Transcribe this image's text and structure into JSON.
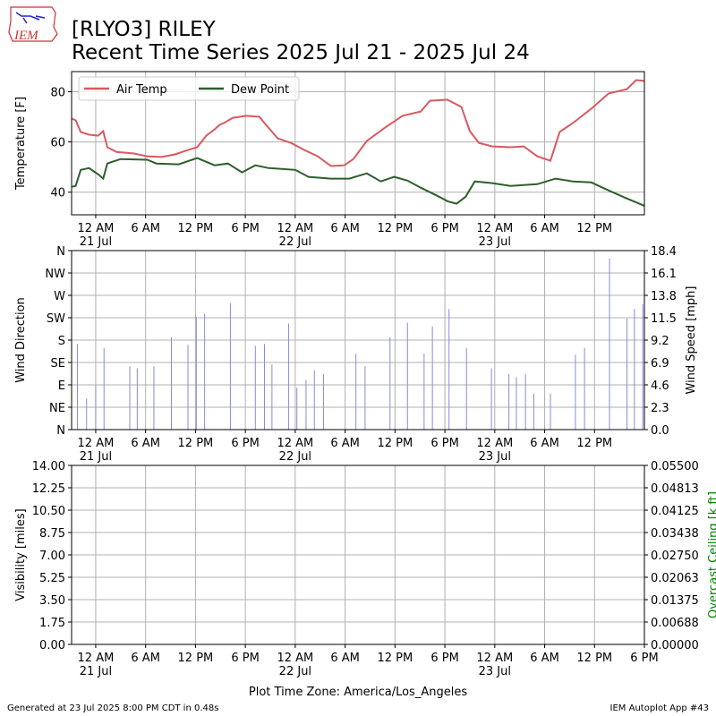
{
  "title": "[RLYO3] RILEY",
  "subtitle": "Recent Time Series 2025 Jul 21 - 2025 Jul 24",
  "logo": "IEM",
  "footer_left": "Generated at 23 Jul 2025 8:00 PM CDT in 0.48s",
  "footer_right": "IEM Autoplot App #43",
  "chart_data": [
    {
      "type": "line",
      "ylabel": "Temperature [F]",
      "grid": true,
      "legend": "upper left",
      "xlim": [
        -2.9,
        66
      ],
      "ylim": [
        31,
        88
      ],
      "yticks": [
        40,
        60,
        80
      ],
      "xticks": [
        {
          "value": 0,
          "label": "12 AM\n21 Jul"
        },
        {
          "value": 6,
          "label": "6 AM"
        },
        {
          "value": 12,
          "label": "12 PM"
        },
        {
          "value": 18,
          "label": "6 PM"
        },
        {
          "value": 24,
          "label": "12 AM\n22 Jul"
        },
        {
          "value": 30,
          "label": "6 AM"
        },
        {
          "value": 36,
          "label": "12 PM"
        },
        {
          "value": 42,
          "label": "6 PM"
        },
        {
          "value": 48,
          "label": "12 AM\n23 Jul"
        },
        {
          "value": 54,
          "label": "6 AM"
        },
        {
          "value": 60,
          "label": "12 PM"
        }
      ],
      "series": [
        {
          "name": "Air Temp",
          "color": "#d9595f",
          "x": [
            -2.9,
            -2.4,
            -1.8,
            -0.8,
            0.3,
            0.9,
            1.4,
            2.5,
            4.6,
            6.2,
            7.9,
            9.5,
            11.1,
            12.2,
            13.3,
            14.3,
            14.9,
            15.4,
            16.5,
            18.1,
            19.7,
            20.3,
            21.9,
            23.5,
            25.1,
            26.7,
            28.3,
            29.9,
            31.0,
            32.6,
            34.8,
            36.9,
            39.1,
            40.2,
            42.3,
            44.0,
            45.0,
            46.1,
            47.7,
            49.9,
            51.5,
            53.1,
            54.7,
            55.8,
            57.4,
            59.6,
            61.7,
            63.9,
            65.0,
            66.0
          ],
          "values": [
            69.3,
            68.6,
            64,
            62.9,
            62.5,
            64.3,
            57.9,
            56,
            55.4,
            54.3,
            54,
            55,
            56.8,
            57.9,
            62.5,
            65,
            66.8,
            67.5,
            69.6,
            70.4,
            70,
            67.5,
            61.4,
            59.6,
            56.8,
            54.3,
            50.4,
            50.7,
            53.2,
            60.4,
            65.7,
            70.4,
            72.1,
            76.4,
            76.8,
            73.9,
            64.3,
            59.6,
            58.2,
            57.9,
            58.2,
            54.3,
            52.5,
            64,
            67.5,
            73.2,
            79.3,
            81,
            84.6,
            84.3
          ]
        },
        {
          "name": "Dew Point",
          "color": "#2e5e2e",
          "x": [
            -2.9,
            -2.4,
            -1.8,
            -0.8,
            0.3,
            0.9,
            1.4,
            3.0,
            6.2,
            7.3,
            10.0,
            12.2,
            14.3,
            15.9,
            17.6,
            19.2,
            20.8,
            24.0,
            25.6,
            28.3,
            30.5,
            32.6,
            34.3,
            35.9,
            37.5,
            39.1,
            41.3,
            42.3,
            43.4,
            44.5,
            45.6,
            47.7,
            49.9,
            53.1,
            55.3,
            57.4,
            59.6,
            61.7,
            63.9,
            66.0
          ],
          "values": [
            42.1,
            42.5,
            48.9,
            49.6,
            47.1,
            45.4,
            51.4,
            53.2,
            52.9,
            51.4,
            51.1,
            53.6,
            50.7,
            51.4,
            47.9,
            50.7,
            49.6,
            48.9,
            46.1,
            45.4,
            45.4,
            47.5,
            44.3,
            46.1,
            44.6,
            41.8,
            38.2,
            36.4,
            35.4,
            38.2,
            44.3,
            43.6,
            42.5,
            43.2,
            45.4,
            44.3,
            43.9,
            40.7,
            37.5,
            34.6
          ]
        }
      ]
    },
    {
      "type": "bar",
      "ylabel": "Wind Direction",
      "y2label": "Wind Speed [mph]",
      "grid": true,
      "xlim": [
        -2.9,
        66
      ],
      "ylim": [
        0,
        360
      ],
      "yticks": [
        {
          "value": 0,
          "label": "N"
        },
        {
          "value": 45,
          "label": "NE"
        },
        {
          "value": 90,
          "label": "E"
        },
        {
          "value": 135,
          "label": "SE"
        },
        {
          "value": 180,
          "label": "S"
        },
        {
          "value": 225,
          "label": "SW"
        },
        {
          "value": 270,
          "label": "W"
        },
        {
          "value": 315,
          "label": "NW"
        },
        {
          "value": 360,
          "label": "N"
        }
      ],
      "y2lim": [
        0,
        18.4
      ],
      "y2ticks": [
        {
          "value": 0,
          "label": "0.0"
        },
        2.3,
        4.6,
        6.9,
        9.2,
        11.5,
        13.8,
        16.1,
        18.4
      ],
      "xticks": [
        {
          "value": 0,
          "label": "12 AM\n21 Jul"
        },
        {
          "value": 6,
          "label": "6 AM"
        },
        {
          "value": 12,
          "label": "12 PM"
        },
        {
          "value": 18,
          "label": "6 PM"
        },
        {
          "value": 24,
          "label": "12 AM\n22 Jul"
        },
        {
          "value": 30,
          "label": "6 AM"
        },
        {
          "value": 36,
          "label": "12 PM"
        },
        {
          "value": 42,
          "label": "6 PM"
        },
        {
          "value": 48,
          "label": "12 AM\n23 Jul"
        },
        {
          "value": 54,
          "label": "6 AM"
        },
        {
          "value": 60,
          "label": "12 PM"
        }
      ],
      "series": [
        {
          "axis": "y2",
          "color": "#8a8ae0",
          "x": [
            -2.2,
            -1.1,
            0,
            1.0,
            4.1,
            5.0,
            7.0,
            9.1,
            11.1,
            12.1,
            13.1,
            16.2,
            19.2,
            20.3,
            21.2,
            23.2,
            24.2,
            25.3,
            26.3,
            27.4,
            31.3,
            32.4,
            35.4,
            37.5,
            39.5,
            40.5,
            42.5,
            44.6,
            47.6,
            49.7,
            50.6,
            51.7,
            52.7,
            54.7,
            57.7,
            58.8,
            61.8,
            63.9,
            64.8,
            65.8
          ],
          "values": [
            8.8,
            3.2,
            4.6,
            8.4,
            6.5,
            6.3,
            6.5,
            9.5,
            8.7,
            11.6,
            11.9,
            13.0,
            8.6,
            8.8,
            6.7,
            10.9,
            4.3,
            5.1,
            6.1,
            5.7,
            7.8,
            6.5,
            9.5,
            11.0,
            7.8,
            10.6,
            12.4,
            8.4,
            6.3,
            5.7,
            5.4,
            5.7,
            3.7,
            3.7,
            7.7,
            8.4,
            17.6,
            11.4,
            12.4,
            12.9
          ]
        }
      ]
    },
    {
      "type": "line",
      "ylabel": "Visibility [miles]",
      "y2label": "Overcast Ceiling [k ft]",
      "y2label_color": "#008000",
      "xlabel": "Plot Time Zone: America/Los_Angeles",
      "grid": true,
      "xlim": [
        -2.9,
        66
      ],
      "ylim": [
        0,
        14
      ],
      "yticks": [
        {
          "value": 0,
          "label": "0.00"
        },
        1.75,
        {
          "value": 3.5,
          "label": "3.50"
        },
        5.25,
        {
          "value": 7,
          "label": "7.00"
        },
        8.75,
        {
          "value": 10.5,
          "label": "10.50"
        },
        12.25,
        {
          "value": 14,
          "label": "14.00"
        }
      ],
      "y2lim": [
        0,
        0.055
      ],
      "y2ticks": [
        {
          "value": 0,
          "label": "0.00000"
        },
        {
          "value": 0.006875,
          "label": "0.00688"
        },
        {
          "value": 0.01375,
          "label": "0.01375"
        },
        {
          "value": 0.020625,
          "label": "0.02063"
        },
        {
          "value": 0.0275,
          "label": "0.02750"
        },
        {
          "value": 0.034375,
          "label": "0.03438"
        },
        {
          "value": 0.04125,
          "label": "0.04125"
        },
        {
          "value": 0.048125,
          "label": "0.04813"
        },
        {
          "value": 0.055,
          "label": "0.05500"
        }
      ],
      "xticks": [
        {
          "value": 0,
          "label": "12 AM\n21 Jul"
        },
        {
          "value": 6,
          "label": "6 AM"
        },
        {
          "value": 12,
          "label": "12 PM"
        },
        {
          "value": 18,
          "label": "6 PM"
        },
        {
          "value": 24,
          "label": "12 AM\n22 Jul"
        },
        {
          "value": 30,
          "label": "6 AM"
        },
        {
          "value": 36,
          "label": "12 PM"
        },
        {
          "value": 42,
          "label": "6 PM"
        },
        {
          "value": 48,
          "label": "12 AM\n23 Jul"
        },
        {
          "value": 54,
          "label": "6 AM"
        },
        {
          "value": 60,
          "label": "12 PM"
        },
        {
          "value": 66,
          "label": "6 PM"
        }
      ]
    }
  ]
}
